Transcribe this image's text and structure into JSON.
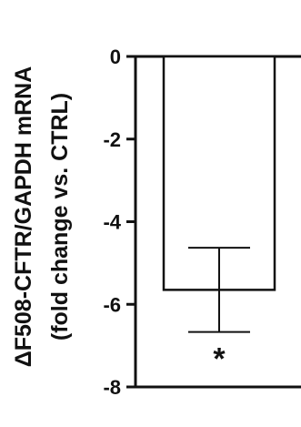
{
  "chart_data": {
    "type": "bar",
    "categories": [
      ""
    ],
    "series": [
      {
        "values": [
          -5.65
        ],
        "error": [
          1.02
        ]
      }
    ],
    "ylabel_line1": "ΔF508-CFTR/GAPDH mRNA",
    "ylabel_line2": "(fold change vs. CTRL)",
    "ylim": [
      -8,
      0
    ],
    "yticks": [
      0,
      -2,
      -4,
      -6,
      -8
    ],
    "annotation": "*",
    "grid": false,
    "legend": "none"
  }
}
